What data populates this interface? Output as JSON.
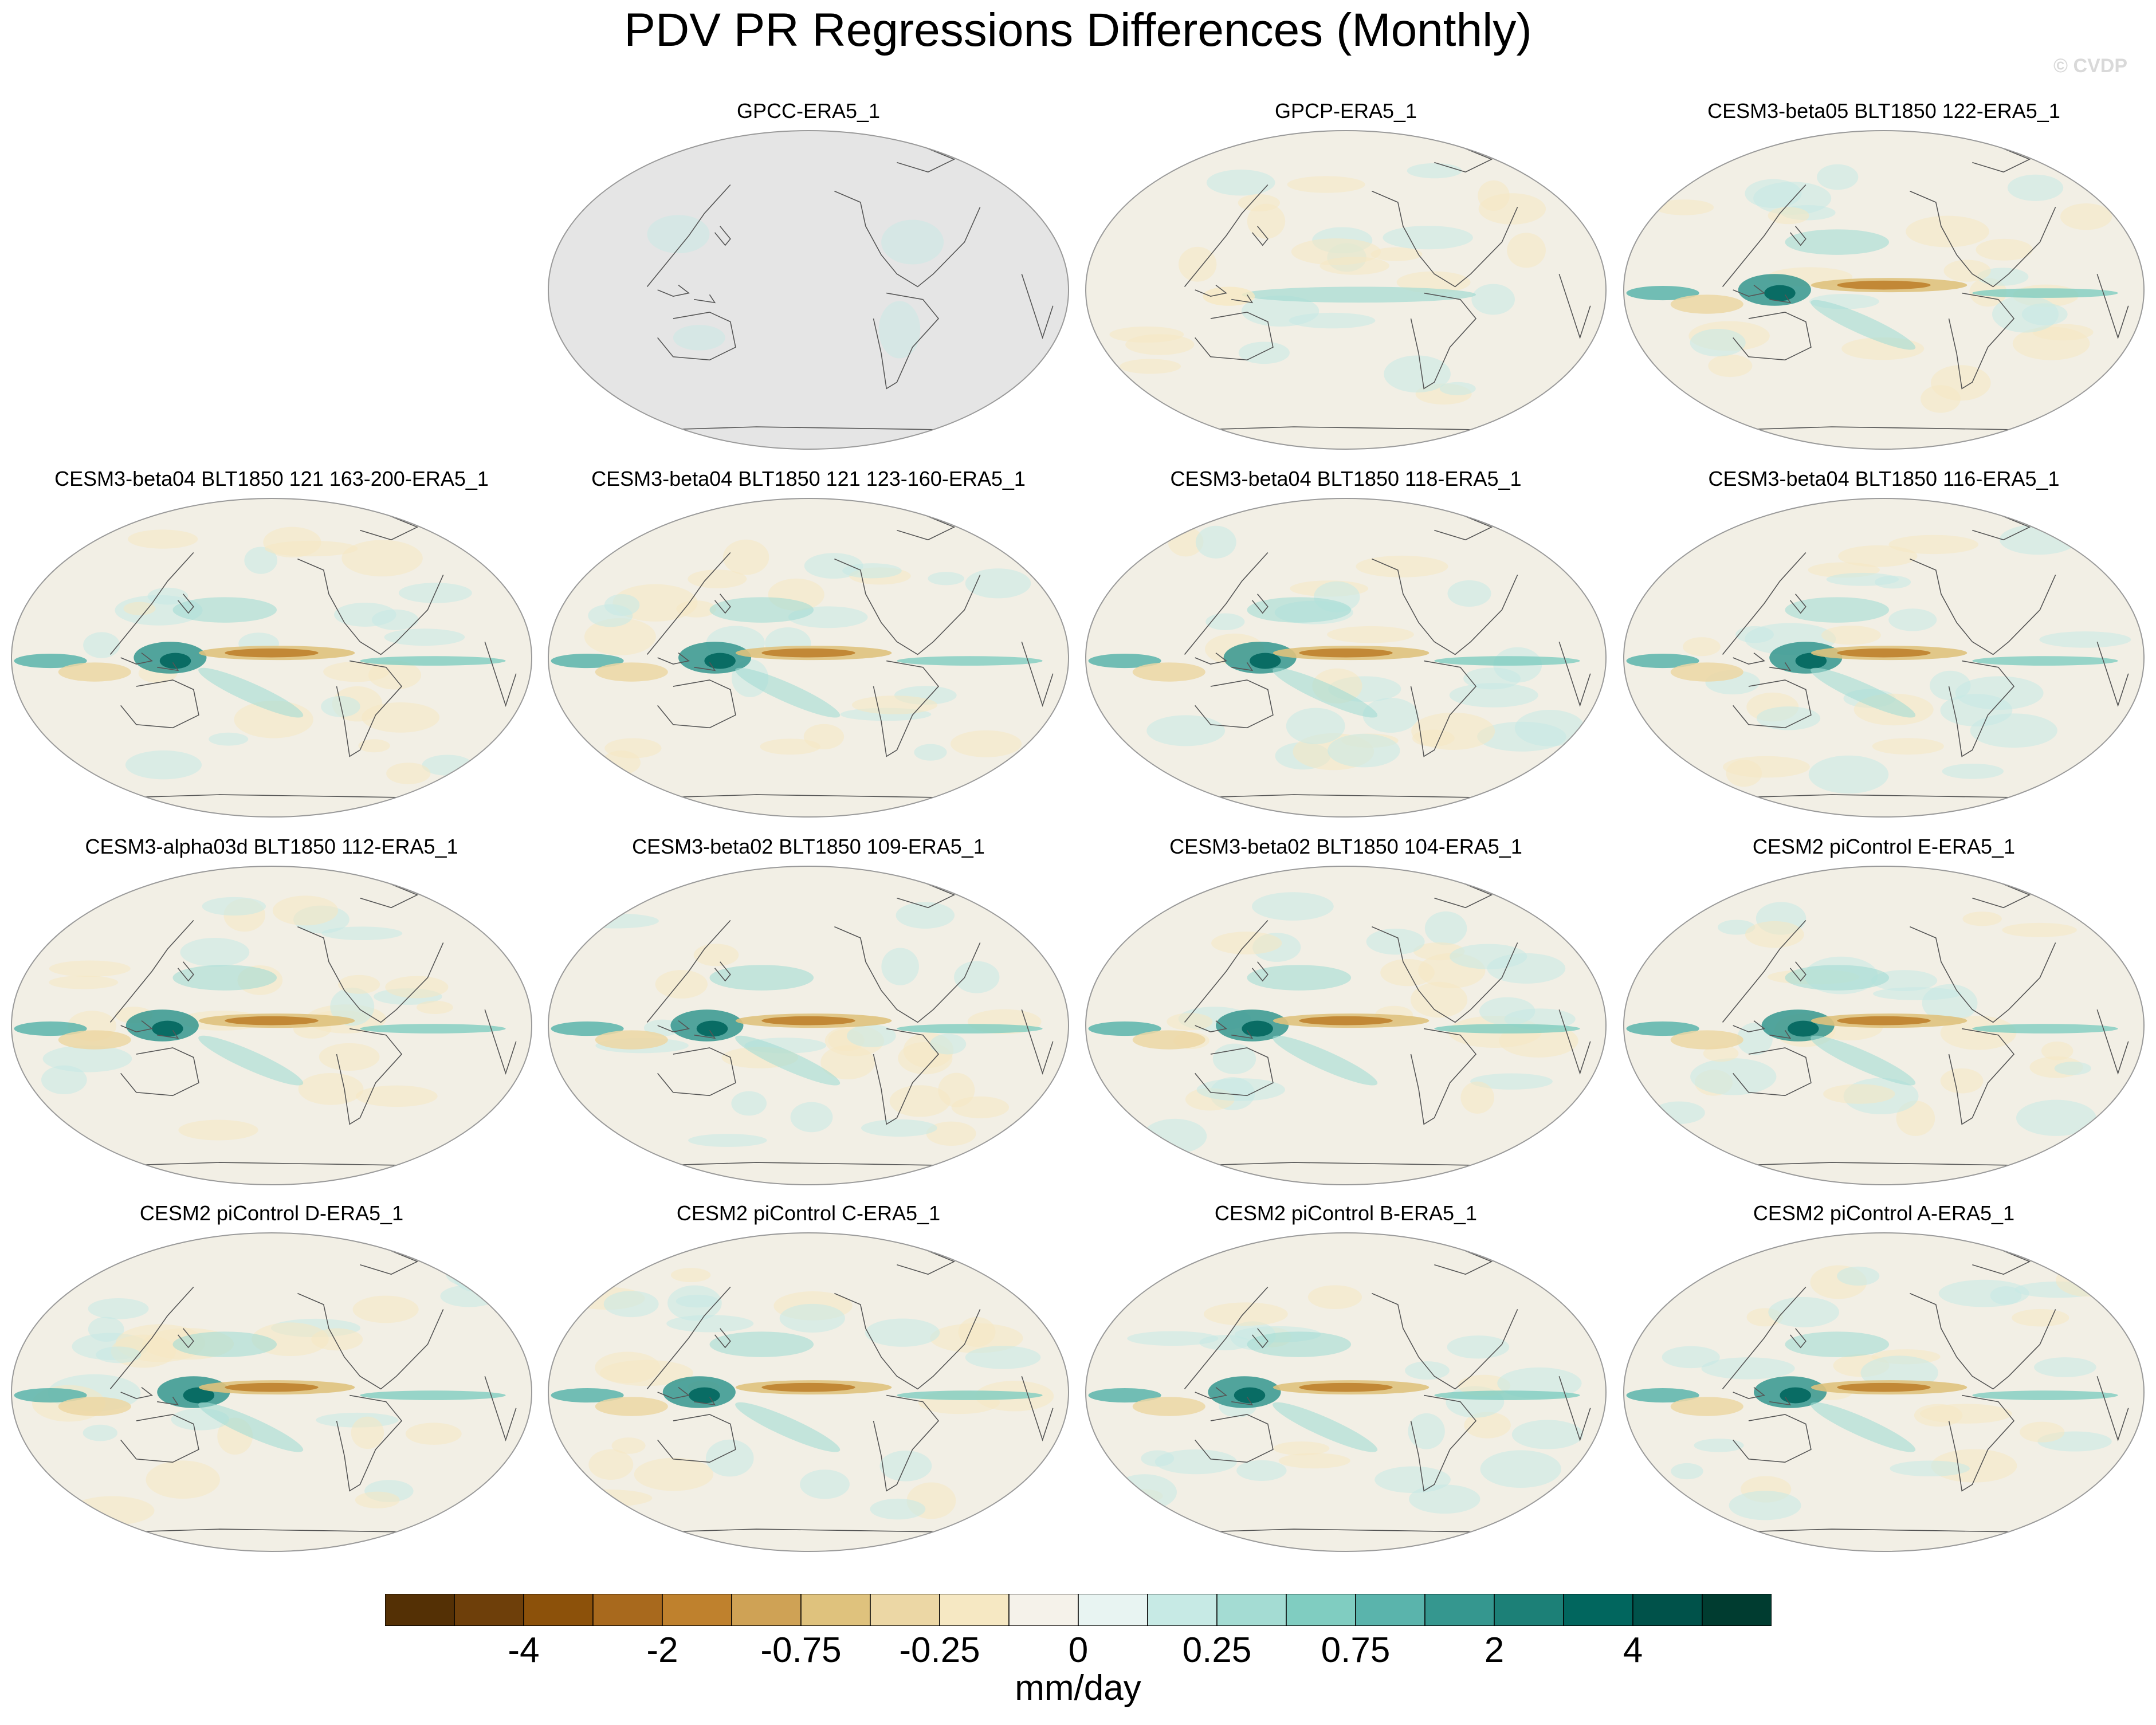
{
  "title": "PDV PR Regressions Differences (Monthly)",
  "watermark": "© CVDP",
  "colors": {
    "ocean_base": "#f2efe5",
    "land_mask": "#e5e5e5",
    "coast": "#555555",
    "border": "#9a9a9a"
  },
  "panels": [
    {
      "title": "GPCC-ERA5_1",
      "style": "gpcc"
    },
    {
      "title": "GPCP-ERA5_1",
      "style": "weak"
    },
    {
      "title": "CESM3-beta05 BLT1850 122-ERA5_1",
      "style": "strong"
    },
    {
      "title": "CESM3-beta04 BLT1850 121 163-200-ERA5_1",
      "style": "strong"
    },
    {
      "title": "CESM3-beta04 BLT1850 121 123-160-ERA5_1",
      "style": "strong"
    },
    {
      "title": "CESM3-beta04 BLT1850 118-ERA5_1",
      "style": "strong"
    },
    {
      "title": "CESM3-beta04 BLT1850 116-ERA5_1",
      "style": "strong"
    },
    {
      "title": "CESM3-alpha03d BLT1850 112-ERA5_1",
      "style": "strong"
    },
    {
      "title": "CESM3-beta02 BLT1850 109-ERA5_1",
      "style": "strong"
    },
    {
      "title": "CESM3-beta02 BLT1850 104-ERA5_1",
      "style": "strong"
    },
    {
      "title": "CESM2 piControl E-ERA5_1",
      "style": "strong"
    },
    {
      "title": "CESM2 piControl D-ERA5_1",
      "style": "strong"
    },
    {
      "title": "CESM2 piControl C-ERA5_1",
      "style": "strong"
    },
    {
      "title": "CESM2 piControl B-ERA5_1",
      "style": "strong"
    },
    {
      "title": "CESM2 piControl A-ERA5_1",
      "style": "strong"
    }
  ],
  "colorbar": {
    "units": "mm/day",
    "colors": [
      "#543005",
      "#6e3f0a",
      "#8c510a",
      "#a8691d",
      "#bf812d",
      "#cfa255",
      "#dfc27d",
      "#ecd7a5",
      "#f6e8c3",
      "#f5f2ea",
      "#e8f4f2",
      "#c7eae5",
      "#a4dcd3",
      "#80cdc1",
      "#5ab4ac",
      "#35978f",
      "#1c8077",
      "#01665e",
      "#00524a",
      "#003c30"
    ],
    "ticks": [
      {
        "label": "-4",
        "index": 2
      },
      {
        "label": "-2",
        "index": 4
      },
      {
        "label": "-0.75",
        "index": 6
      },
      {
        "label": "-0.25",
        "index": 8
      },
      {
        "label": "0",
        "index": 10
      },
      {
        "label": "0.25",
        "index": 12
      },
      {
        "label": "0.75",
        "index": 14
      },
      {
        "label": "2",
        "index": 16
      },
      {
        "label": "4",
        "index": 18
      }
    ]
  }
}
